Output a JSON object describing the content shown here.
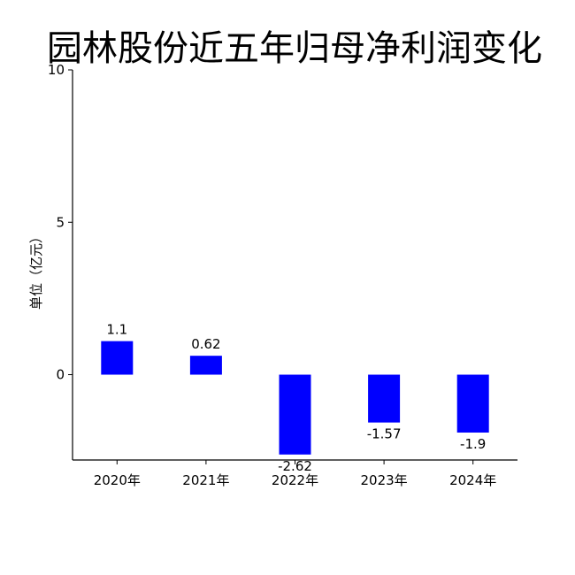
{
  "chart_data": {
    "type": "bar",
    "title": "园林股份近五年归母净利润变化",
    "xlabel": "",
    "ylabel": "单位（亿元）",
    "categories": [
      "2020年",
      "2021年",
      "2022年",
      "2023年",
      "2024年"
    ],
    "values": [
      1.1,
      0.62,
      -2.62,
      -1.57,
      -1.9
    ],
    "data_labels": [
      "1.1",
      "0.62",
      "-2.62",
      "-1.57",
      "-1.9"
    ],
    "ylim": [
      -2.8,
      10
    ],
    "yticks": [
      0,
      5,
      10
    ],
    "ytick_labels": [
      "0",
      "5",
      "10"
    ],
    "bar_color": "#0000ff",
    "grid": false,
    "legend": "none"
  }
}
